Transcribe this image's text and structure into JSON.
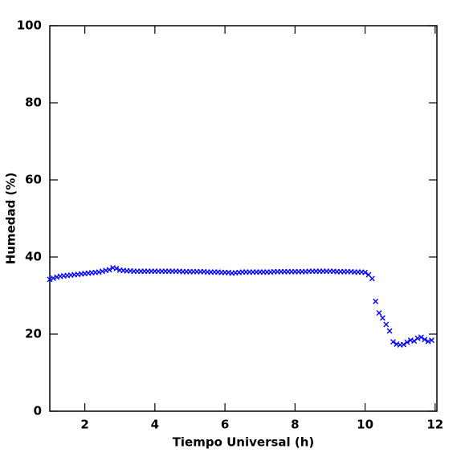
{
  "chart_data": {
    "type": "scatter",
    "x_label": "Tiempo Universal (h)",
    "y_label": "Humedad (%)",
    "xlim": [
      1,
      12.05
    ],
    "ylim": [
      0,
      100
    ],
    "xticks": [
      2,
      4,
      6,
      8,
      10,
      12
    ],
    "yticks": [
      0,
      20,
      40,
      60,
      80,
      100
    ],
    "color": "#0000ff",
    "x": [
      1.0,
      1.1,
      1.2,
      1.3,
      1.4,
      1.5,
      1.6,
      1.7,
      1.8,
      1.9,
      2.0,
      2.1,
      2.2,
      2.3,
      2.4,
      2.5,
      2.6,
      2.7,
      2.8,
      2.9,
      3.0,
      3.1,
      3.2,
      3.3,
      3.4,
      3.5,
      3.6,
      3.7,
      3.8,
      3.9,
      4.0,
      4.1,
      4.2,
      4.3,
      4.4,
      4.5,
      4.6,
      4.7,
      4.8,
      4.9,
      5.0,
      5.1,
      5.2,
      5.3,
      5.4,
      5.5,
      5.6,
      5.7,
      5.8,
      5.9,
      6.0,
      6.1,
      6.2,
      6.3,
      6.4,
      6.5,
      6.6,
      6.7,
      6.8,
      6.9,
      7.0,
      7.1,
      7.2,
      7.3,
      7.4,
      7.5,
      7.6,
      7.7,
      7.8,
      7.9,
      8.0,
      8.1,
      8.2,
      8.3,
      8.4,
      8.5,
      8.6,
      8.7,
      8.8,
      8.9,
      9.0,
      9.1,
      9.2,
      9.3,
      9.4,
      9.5,
      9.6,
      9.7,
      9.8,
      9.9,
      10.0,
      10.1,
      10.2,
      10.3,
      10.4,
      10.5,
      10.6,
      10.7,
      10.8,
      10.9,
      11.0,
      11.1,
      11.2,
      11.3,
      11.4,
      11.5,
      11.6,
      11.7,
      11.8,
      11.9
    ],
    "values": [
      34.2,
      34.5,
      34.8,
      35.0,
      35.1,
      35.2,
      35.3,
      35.4,
      35.5,
      35.6,
      35.7,
      35.8,
      35.9,
      36.0,
      36.1,
      36.3,
      36.5,
      36.7,
      37.2,
      37.0,
      36.6,
      36.5,
      36.4,
      36.4,
      36.3,
      36.3,
      36.3,
      36.3,
      36.3,
      36.3,
      36.3,
      36.3,
      36.3,
      36.3,
      36.3,
      36.3,
      36.3,
      36.3,
      36.2,
      36.2,
      36.2,
      36.2,
      36.2,
      36.2,
      36.2,
      36.1,
      36.1,
      36.1,
      36.1,
      36.0,
      36.0,
      36.0,
      35.8,
      35.9,
      36.0,
      36.1,
      36.1,
      36.1,
      36.1,
      36.1,
      36.1,
      36.1,
      36.1,
      36.1,
      36.2,
      36.2,
      36.2,
      36.2,
      36.2,
      36.2,
      36.2,
      36.2,
      36.2,
      36.2,
      36.3,
      36.3,
      36.3,
      36.3,
      36.3,
      36.3,
      36.3,
      36.3,
      36.2,
      36.2,
      36.2,
      36.2,
      36.2,
      36.1,
      36.1,
      36.1,
      36.0,
      35.4,
      34.4,
      28.5,
      25.5,
      24.2,
      22.5,
      20.8,
      18.0,
      17.4,
      17.2,
      17.3,
      17.9,
      18.4,
      18.2,
      18.9,
      19.2,
      18.6,
      18.1,
      18.4
    ]
  }
}
